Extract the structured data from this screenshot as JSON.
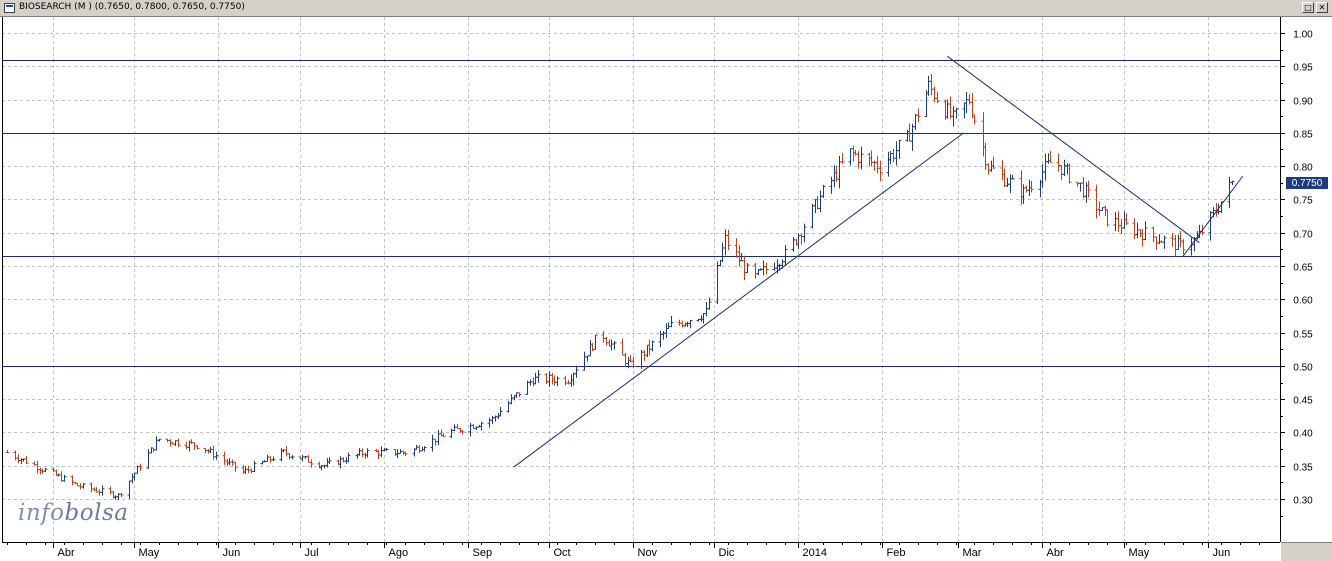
{
  "window": {
    "title": "BIOSEARCH (M ) (0.7650, 0.7800, 0.7650, 0.7750)",
    "restore_glyph": "□",
    "close_glyph": "✕"
  },
  "logo": {
    "part1": "info",
    "part2": "bolsa"
  },
  "colors": {
    "up": "#1c3d7a",
    "down": "#b5441e",
    "trend": "#1c2c6e",
    "grid": "#c0c0c0"
  },
  "chart_data": {
    "type": "ohlc",
    "title": "BIOSEARCH",
    "last_value_label": "0.7750",
    "ylim": [
      0.245,
      1.04
    ],
    "y_ticks": [
      "1.00",
      "0.95",
      "0.90",
      "0.85",
      "0.80",
      "0.75",
      "0.70",
      "0.65",
      "0.60",
      "0.55",
      "0.50",
      "0.45",
      "0.40",
      "0.35",
      "0.30"
    ],
    "x_months": [
      "Abr",
      "May",
      "Jun",
      "Jul",
      "Ago",
      "Sep",
      "Oct",
      "Nov",
      "Dic",
      "2014",
      "Feb",
      "Mar",
      "Abr",
      "May",
      "Jun"
    ],
    "period": "2013-03 to 2014-06",
    "horizontal_lines": [
      0.96,
      0.85,
      0.665,
      0.5
    ],
    "trend_lines": [
      {
        "from": [
          "2013-09-18",
          0.348
        ],
        "to": [
          "2014-03-03",
          0.85
        ]
      },
      {
        "from": [
          "2014-02-25",
          0.965
        ],
        "to": [
          "2014-05-29",
          0.685
        ]
      },
      {
        "from": [
          "2014-05-23",
          0.665
        ],
        "to": [
          "2014-06-14",
          0.785
        ]
      }
    ],
    "anchors": [
      [
        "2013-03-15",
        0.37
      ],
      [
        "2013-04-10",
        0.32
      ],
      [
        "2013-04-25",
        0.305
      ],
      [
        "2013-05-10",
        0.39
      ],
      [
        "2013-05-25",
        0.38
      ],
      [
        "2013-06-10",
        0.34
      ],
      [
        "2013-06-25",
        0.37
      ],
      [
        "2013-07-10",
        0.35
      ],
      [
        "2013-07-25",
        0.37
      ],
      [
        "2013-08-10",
        0.37
      ],
      [
        "2013-08-25",
        0.4
      ],
      [
        "2013-09-10",
        0.42
      ],
      [
        "2013-09-25",
        0.48
      ],
      [
        "2013-10-08",
        0.48
      ],
      [
        "2013-10-20",
        0.55
      ],
      [
        "2013-10-31",
        0.5
      ],
      [
        "2013-11-15",
        0.56
      ],
      [
        "2013-11-28",
        0.58
      ],
      [
        "2013-12-05",
        0.69
      ],
      [
        "2013-12-15",
        0.63
      ],
      [
        "2013-12-28",
        0.67
      ],
      [
        "2014-01-10",
        0.76
      ],
      [
        "2014-01-20",
        0.82
      ],
      [
        "2014-01-31",
        0.8
      ],
      [
        "2014-02-10",
        0.84
      ],
      [
        "2014-02-18",
        0.92
      ],
      [
        "2014-02-27",
        0.87
      ],
      [
        "2014-03-05",
        0.9
      ],
      [
        "2014-03-12",
        0.8
      ],
      [
        "2014-03-25",
        0.76
      ],
      [
        "2014-04-05",
        0.81
      ],
      [
        "2014-04-15",
        0.77
      ],
      [
        "2014-04-25",
        0.72
      ],
      [
        "2014-05-08",
        0.7
      ],
      [
        "2014-05-22",
        0.68
      ],
      [
        "2014-05-28",
        0.69
      ],
      [
        "2014-06-05",
        0.74
      ],
      [
        "2014-06-10",
        0.775
      ]
    ]
  }
}
